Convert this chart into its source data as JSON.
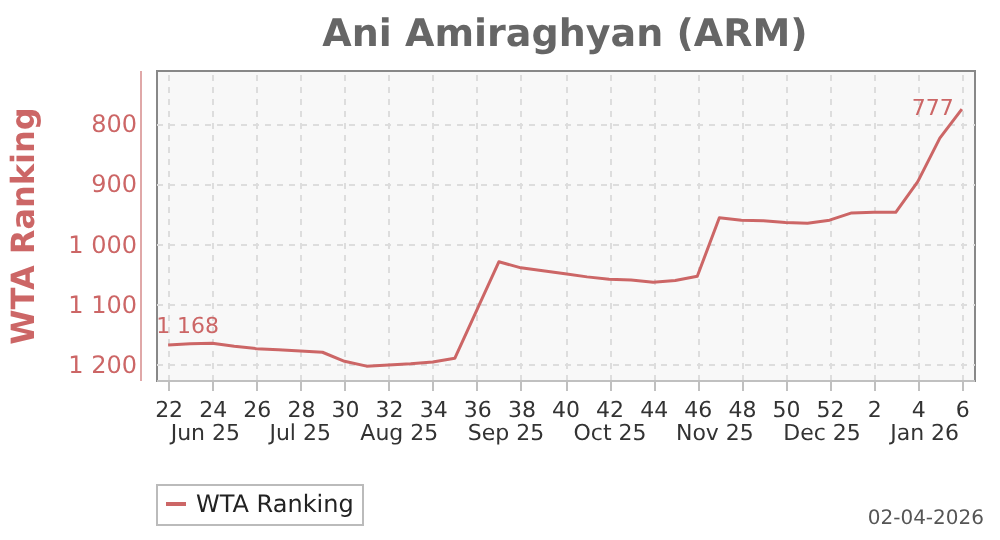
{
  "chart_data": {
    "type": "line",
    "title": "Ani Amiraghyan (ARM)",
    "ylabel": "WTA Ranking",
    "categories": [
      "22",
      null,
      "24",
      null,
      "26",
      null,
      "28",
      null,
      "30",
      null,
      "32",
      null,
      "34",
      null,
      "36",
      null,
      "38",
      null,
      "40",
      null,
      "42",
      null,
      "44",
      null,
      "46",
      null,
      "48",
      null,
      "50",
      null,
      "52",
      null,
      "2",
      null,
      "4",
      null,
      "6"
    ],
    "series": [
      {
        "name": "WTA Ranking",
        "color": "#cc6666",
        "values": [
          1168,
          1166,
          1165,
          1170,
          1174,
          1176,
          1178,
          1180,
          1195,
          1203,
          1201,
          1199,
          1196,
          1190,
          1110,
          1030,
          1040,
          1045,
          1050,
          1055,
          1059,
          1060,
          1064,
          1061,
          1054,
          957,
          961,
          962,
          965,
          966,
          961,
          949,
          948,
          948,
          897,
          825,
          777
        ],
        "value_labels": [
          "1 168",
          null,
          null,
          null,
          null,
          null,
          null,
          null,
          null,
          null,
          null,
          null,
          null,
          null,
          null,
          null,
          null,
          null,
          null,
          null,
          null,
          null,
          null,
          null,
          null,
          null,
          null,
          null,
          null,
          null,
          null,
          null,
          null,
          null,
          null,
          null,
          "777"
        ]
      }
    ],
    "ylim": [
      1226,
      712
    ],
    "yticks": [
      {
        "value": 800,
        "label": "800"
      },
      {
        "value": 900,
        "label": "900"
      },
      {
        "value": 1000,
        "label": "1 000"
      },
      {
        "value": 1100,
        "label": "1 100"
      },
      {
        "value": 1200,
        "label": "1 200"
      }
    ],
    "annotations": [
      "Jun 25",
      "Jul 25",
      "Aug 25",
      "Sep 25",
      "Oct 25",
      "Nov 25",
      "Dec 25",
      "Jan 26",
      "02-04-2026"
    ],
    "grid": true,
    "legend": "bottom",
    "marker": "none",
    "line_style": "solid"
  }
}
